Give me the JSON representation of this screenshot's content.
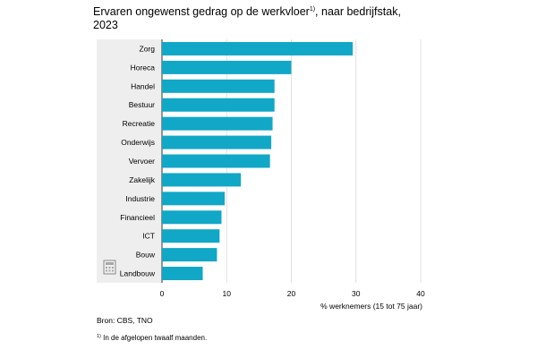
{
  "chart_title": {
    "before_sup": "Ervaren ongewenst gedrag op de werkvloer",
    "sup": "1)",
    "after_sup": ", naar bedrijfstak, 2023"
  },
  "chart_data": {
    "type": "bar",
    "orientation": "horizontal",
    "title": "Ervaren ongewenst gedrag op de werkvloer1), naar bedrijfstak, 2023",
    "categories": [
      "Zorg",
      "Horeca",
      "Handel",
      "Bestuur",
      "Recreatie",
      "Onderwijs",
      "Vervoer",
      "Zakelijk",
      "Industrie",
      "Financieel",
      "ICT",
      "Bouw",
      "Landbouw"
    ],
    "values": [
      29.5,
      20,
      17.4,
      17.4,
      17.1,
      16.9,
      16.7,
      12.2,
      9.7,
      9.2,
      8.9,
      8.5,
      6.3
    ],
    "xlabel": "% werknemers (15 tot 75 jaar)",
    "ylabel": "",
    "xlim": [
      0,
      40
    ],
    "xticks": [
      0,
      10,
      20,
      30,
      40
    ],
    "grid": true,
    "bar_color": "#11a7c7",
    "label_area_color": "#eeeeee",
    "grid_color": "#d9d9d9"
  },
  "source": "Bron: CBS, TNO",
  "footnote": {
    "marker": "1)",
    "text": " In de afgelopen twaalf maanden."
  },
  "icons": {
    "table_icon": "calculator-table-icon"
  }
}
